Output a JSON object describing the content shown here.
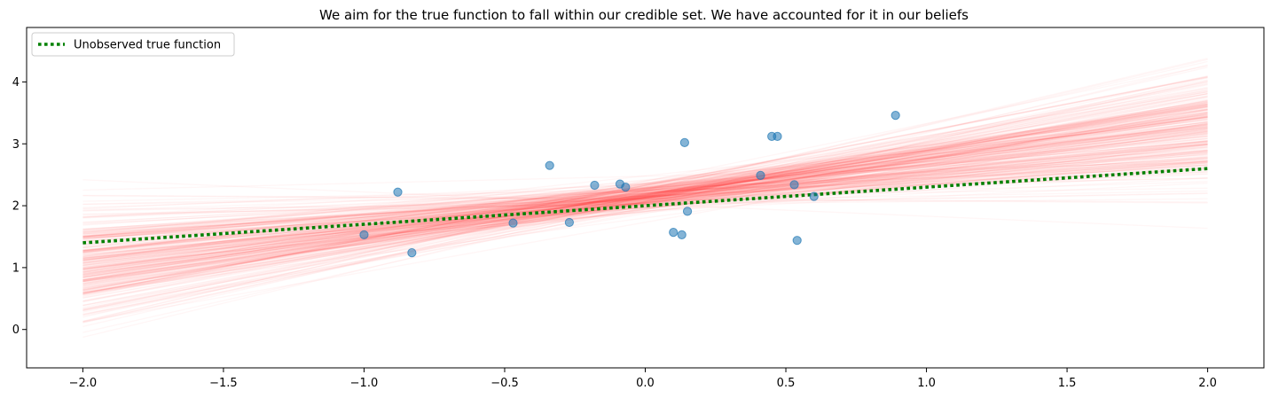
{
  "chart_data": {
    "type": "line",
    "title": "We aim for the true function to fall within our credible set. We have accounted for it in our beliefs",
    "xlabel": "",
    "ylabel": "",
    "xlim": [
      -2.2,
      2.2
    ],
    "ylim": [
      -0.62,
      4.88
    ],
    "xticks": [
      -2.0,
      -1.5,
      -1.0,
      -0.5,
      0.0,
      0.5,
      1.0,
      1.5,
      2.0
    ],
    "xtick_labels": [
      "−2.0",
      "−1.5",
      "−1.0",
      "−0.5",
      "0.0",
      "0.5",
      "1.0",
      "1.5",
      "2.0"
    ],
    "yticks": [
      0,
      1,
      2,
      3,
      4
    ],
    "ytick_labels": [
      "0",
      "1",
      "2",
      "3",
      "4"
    ],
    "grid": false,
    "legend": {
      "position": "top-left",
      "entries": [
        "Unobserved true function"
      ]
    },
    "colors": {
      "true_function": "#008000",
      "posterior_samples": "#ff0000",
      "observations": "#1f77b4"
    },
    "true_function": {
      "name": "Unobserved true function",
      "style": "dotted",
      "x": [
        -2.0,
        2.0
      ],
      "y": [
        1.4,
        2.6
      ]
    },
    "posterior_samples": {
      "description_source": "many faint red posterior sample lines spanning x from -2 to 2",
      "x_range": [
        -2.0,
        2.0
      ],
      "center_intercept": 2.15,
      "center_slope": 0.55,
      "intercept_spread": 0.12,
      "slope_spread": 0.22,
      "count": 300
    },
    "observations": {
      "x": [
        -1.0,
        -0.88,
        -0.83,
        -0.47,
        -0.34,
        -0.27,
        -0.18,
        -0.09,
        -0.07,
        0.1,
        0.13,
        0.14,
        0.15,
        0.41,
        0.45,
        0.47,
        0.53,
        0.54,
        0.6,
        0.89
      ],
      "y": [
        1.53,
        2.22,
        1.24,
        1.72,
        2.65,
        1.73,
        2.33,
        2.35,
        2.3,
        1.57,
        1.53,
        3.02,
        1.91,
        2.49,
        3.12,
        3.12,
        2.34,
        1.44,
        2.15,
        3.46
      ]
    }
  }
}
